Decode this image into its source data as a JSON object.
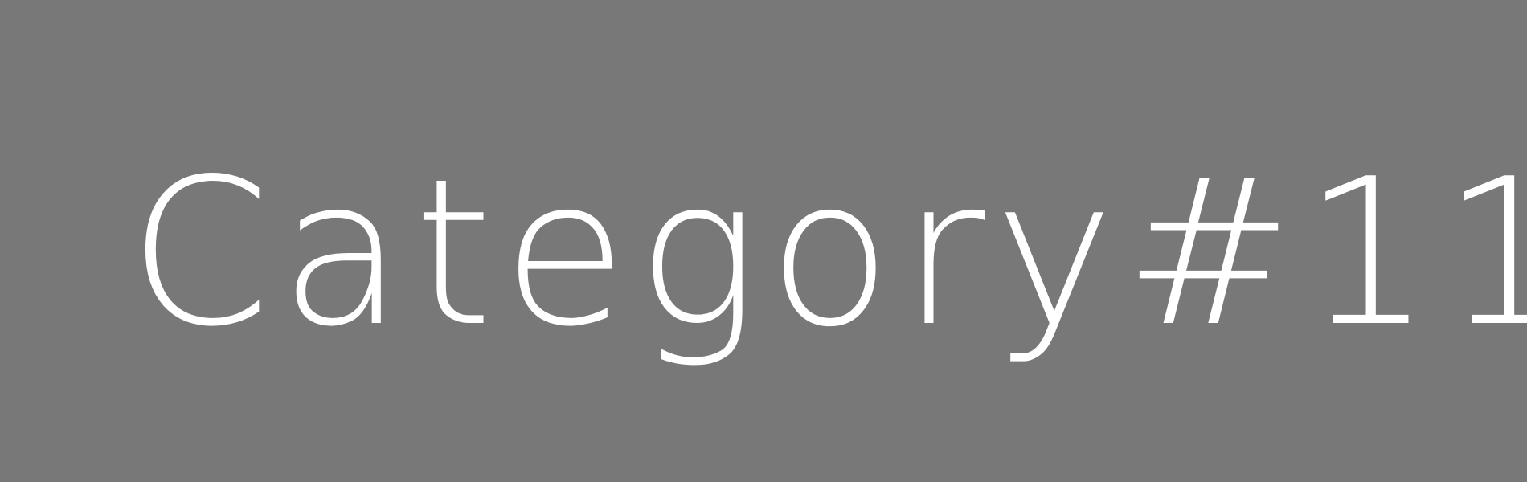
{
  "label": "Category#11",
  "colors": {
    "background": "#787878",
    "text": "#ffffff"
  }
}
